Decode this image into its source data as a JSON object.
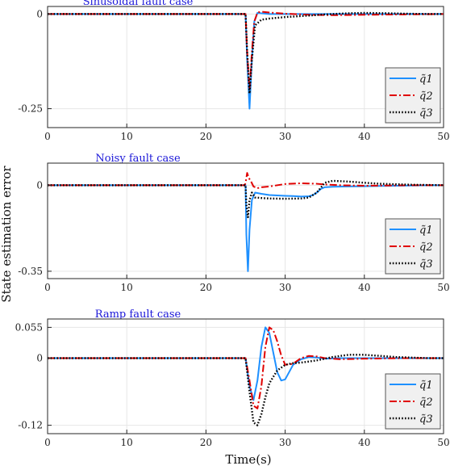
{
  "figure": {
    "xlabel": "Time(s)",
    "ylabel": "State estimation error"
  },
  "colors": {
    "q1": "#1e90ff",
    "q2": "#e00000",
    "q3": "#000000",
    "title": "#1a16d8",
    "grid": "#e6e6e6",
    "legend_bg": "#f0f0f0"
  },
  "chart_data": [
    {
      "type": "line",
      "title": "Sinusoidal fault case",
      "xlim": [
        0,
        50
      ],
      "ylim": [
        -0.3,
        0.02
      ],
      "xticks": [
        "0",
        "10",
        "20",
        "30",
        "40",
        "50"
      ],
      "yticks": [
        {
          "value": 0,
          "label": "0"
        },
        {
          "value": -0.25,
          "label": "-0.25"
        }
      ],
      "grid": true,
      "legend": "bottom-right",
      "series": [
        {
          "name": "q̃1",
          "style": "solid",
          "color": "#1e90ff",
          "x": [
            0,
            25,
            25.2,
            25.5,
            25.8,
            26.1,
            26.5,
            27,
            28,
            30,
            35,
            40,
            45,
            50
          ],
          "y": [
            0,
            0,
            -0.12,
            -0.25,
            -0.12,
            -0.02,
            0.003,
            0.002,
            0,
            0,
            0,
            0,
            0,
            0
          ]
        },
        {
          "name": "q̃2",
          "style": "dashdot",
          "color": "#e00000",
          "x": [
            0,
            25,
            25.2,
            25.5,
            25.8,
            26.1,
            26.5,
            27,
            28,
            30,
            33,
            36,
            40,
            45,
            50
          ],
          "y": [
            0,
            0,
            -0.1,
            -0.2,
            -0.1,
            -0.02,
            0.004,
            0.006,
            0.004,
            0.001,
            -0.002,
            -0.003,
            -0.002,
            -0.001,
            0
          ]
        },
        {
          "name": "q̃3",
          "style": "dotted",
          "color": "#000000",
          "x": [
            0,
            25,
            25.2,
            25.5,
            25.8,
            26.2,
            27,
            28,
            30,
            33,
            35,
            38,
            40,
            43,
            45,
            48,
            50
          ],
          "y": [
            0,
            0,
            -0.1,
            -0.21,
            -0.12,
            -0.03,
            -0.015,
            -0.012,
            -0.008,
            -0.004,
            -0.001,
            0.002,
            0.003,
            0.002,
            0.001,
            0,
            0
          ]
        }
      ]
    },
    {
      "type": "line",
      "title": "Noisy fault case",
      "xlim": [
        0,
        50
      ],
      "ylim": [
        -0.38,
        0.09
      ],
      "xticks": [
        "0",
        "10",
        "20",
        "30",
        "40",
        "50"
      ],
      "yticks": [
        {
          "value": 0,
          "label": "0"
        },
        {
          "value": -0.35,
          "label": "-0.35"
        }
      ],
      "grid": true,
      "legend": "bottom-right",
      "series": [
        {
          "name": "q̃1",
          "style": "solid",
          "color": "#1e90ff",
          "x": [
            0,
            25,
            25.1,
            25.3,
            25.5,
            25.8,
            26.2,
            27,
            28,
            30,
            31,
            32,
            33,
            33.5,
            34,
            34.5,
            35,
            36,
            38,
            40,
            42,
            44,
            46,
            48,
            50
          ],
          "y": [
            0,
            0,
            -0.2,
            -0.35,
            -0.18,
            -0.06,
            -0.03,
            -0.035,
            -0.04,
            -0.043,
            -0.044,
            -0.046,
            -0.045,
            -0.04,
            -0.03,
            -0.015,
            -0.008,
            -0.006,
            -0.005,
            -0.004,
            -0.003,
            -0.002,
            -0.001,
            0,
            0
          ]
        },
        {
          "name": "q̃2",
          "style": "dashdot",
          "color": "#e00000",
          "x": [
            0,
            24.9,
            25,
            25.2,
            25.4,
            25.7,
            26,
            26.5,
            27,
            28,
            30,
            32,
            34,
            35,
            37,
            40,
            43,
            46,
            50
          ],
          "y": [
            0,
            0,
            0.01,
            0.05,
            0.03,
            0.015,
            -0.005,
            -0.012,
            -0.008,
            -0.005,
            0.005,
            0.008,
            0.006,
            0.003,
            0,
            -0.002,
            -0.001,
            0,
            0
          ]
        },
        {
          "name": "q̃3",
          "style": "dotted",
          "color": "#000000",
          "x": [
            0,
            25,
            25.1,
            25.3,
            25.5,
            25.8,
            26.2,
            27,
            28,
            30,
            32,
            33,
            34,
            34.5,
            35,
            36,
            38,
            40,
            42,
            44,
            46,
            48,
            50
          ],
          "y": [
            0,
            0,
            -0.08,
            -0.13,
            -0.06,
            -0.03,
            -0.05,
            -0.052,
            -0.054,
            -0.055,
            -0.054,
            -0.05,
            -0.03,
            -0.01,
            0.01,
            0.018,
            0.015,
            0.01,
            0.006,
            0.004,
            0.002,
            0.001,
            0
          ]
        }
      ]
    },
    {
      "type": "line",
      "title": "Ramp fault case",
      "xlim": [
        0,
        50
      ],
      "ylim": [
        -0.135,
        0.07
      ],
      "xticks": [
        "0",
        "10",
        "20",
        "30",
        "40",
        "50"
      ],
      "yticks": [
        {
          "value": 0.055,
          "label": "0.055"
        },
        {
          "value": 0,
          "label": "0"
        },
        {
          "value": -0.12,
          "label": "-0.12"
        }
      ],
      "grid": true,
      "legend": "bottom-right",
      "series": [
        {
          "name": "q̃1",
          "style": "solid",
          "color": "#1e90ff",
          "x": [
            0,
            25,
            25.5,
            26,
            26.5,
            27,
            27.5,
            28,
            28.5,
            29,
            29.5,
            30,
            30.5,
            31,
            32,
            33,
            34,
            35,
            37,
            40,
            45,
            50
          ],
          "y": [
            0,
            0,
            -0.05,
            -0.075,
            -0.04,
            0.02,
            0.055,
            0.045,
            0.01,
            -0.025,
            -0.04,
            -0.038,
            -0.025,
            -0.012,
            -0.002,
            0.002,
            0.001,
            -0.001,
            0,
            0,
            0,
            0
          ]
        },
        {
          "name": "q̃2",
          "style": "dashdot",
          "color": "#e00000",
          "x": [
            0,
            25,
            25.5,
            26,
            26.5,
            27,
            27.5,
            28,
            28.5,
            29,
            29.5,
            30,
            31,
            32,
            33,
            34,
            35,
            37,
            40,
            45,
            50
          ],
          "y": [
            0,
            0,
            -0.04,
            -0.085,
            -0.09,
            -0.05,
            0.02,
            0.055,
            0.05,
            0.03,
            0.005,
            -0.012,
            -0.01,
            0,
            0.004,
            0.003,
            0,
            -0.002,
            -0.001,
            0,
            0
          ]
        },
        {
          "name": "q̃3",
          "style": "dotted",
          "color": "#000000",
          "x": [
            0,
            25,
            25.5,
            26,
            26.5,
            27,
            27.5,
            28,
            29,
            30,
            31,
            32,
            33,
            34,
            35,
            36,
            38,
            40,
            42,
            44,
            46,
            48,
            50
          ],
          "y": [
            0,
            0,
            -0.06,
            -0.115,
            -0.12,
            -0.1,
            -0.07,
            -0.045,
            -0.022,
            -0.012,
            -0.009,
            -0.008,
            -0.006,
            -0.004,
            -0.001,
            0.002,
            0.006,
            0.006,
            0.004,
            0.002,
            0.001,
            0,
            0
          ]
        }
      ]
    }
  ]
}
